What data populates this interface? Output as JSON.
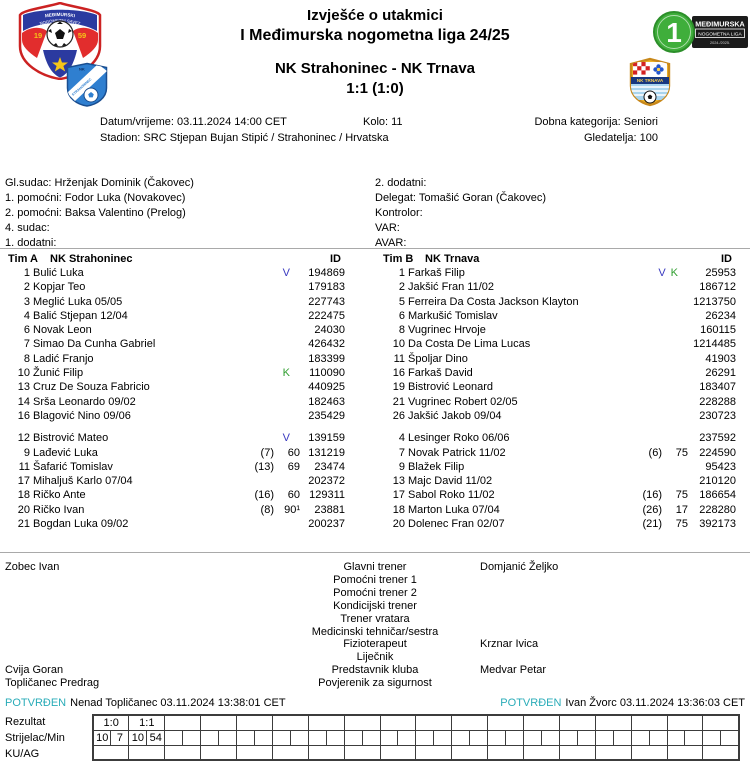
{
  "header": {
    "report_title": "Izvješće o utakmici",
    "league_title": "I Međimurska nogometna liga 24/25",
    "match_title": "NK Strahoninec - NK Trnava",
    "score": "1:1 (1:0)",
    "savez_logo": {
      "arc_line1": "MEĐIMURSKI",
      "arc_line2": "NOGOMETNI SAVEZ",
      "year_left": "19",
      "year_right": "59"
    },
    "mnl_badge": {
      "number": "1",
      "line1": "MEĐIMURSKA",
      "line2": "NOGOMETNA LIGA",
      "line3": "2024./2025."
    },
    "home_logo": {
      "top_text": "NK",
      "stripe_text": "STRAHONINEC"
    },
    "away_logo": {
      "banner_text": "NK TRNAVA"
    }
  },
  "match_info": {
    "datetime": "Datum/vrijeme: 03.11.2024 14:00 CET",
    "round": "Kolo: 11",
    "category": "Dobna kategorija: Seniori",
    "stadium": "Stadion: SRC Stjepan Bujan Stipić / Strahoninec / Hrvatska",
    "attendance": "Gledatelja: 100"
  },
  "officials": {
    "left": [
      "Gl.sudac: Hrženjak Dominik (Čakovec)",
      "1. pomoćni: Fodor Luka (Novakovec)",
      "2. pomoćni: Baksa Valentino (Prelog)",
      "4. sudac:",
      "1. dodatni:"
    ],
    "right": [
      "2. dodatni:",
      "Delegat: Tomašić Goran (Čakovec)",
      "Kontrolor:",
      "VAR:",
      "AVAR:"
    ]
  },
  "team_a": {
    "label": "Tim A",
    "name": "NK Strahoninec",
    "id_header": "ID",
    "starters": [
      {
        "num": "1",
        "name": "Bulić Luka",
        "badges": [
          "V"
        ],
        "id": "194869"
      },
      {
        "num": "2",
        "name": "Kopjar Teo",
        "id": "179183"
      },
      {
        "num": "3",
        "name": "Meglić Luka 05/05",
        "id": "227743"
      },
      {
        "num": "4",
        "name": "Balić Stjepan 12/04",
        "id": "222475"
      },
      {
        "num": "6",
        "name": "Novak Leon",
        "id": "24030"
      },
      {
        "num": "7",
        "name": "Simao Da Cunha Gabriel",
        "id": "426432"
      },
      {
        "num": "8",
        "name": "Ladić Franjo",
        "id": "183399"
      },
      {
        "num": "10",
        "name": "Žunić Filip",
        "badges": [
          "K"
        ],
        "id": "110090"
      },
      {
        "num": "13",
        "name": "Cruz De Souza Fabricio",
        "id": "440925"
      },
      {
        "num": "14",
        "name": "Srša Leonardo 09/02",
        "id": "182463"
      },
      {
        "num": "16",
        "name": "Blagović Nino 09/06",
        "id": "235429"
      }
    ],
    "subs": [
      {
        "num": "12",
        "name": "Bistrović Mateo",
        "badges": [
          "V"
        ],
        "id": "139159"
      },
      {
        "num": "9",
        "name": "Lađević Luka",
        "sub_for": "(7)",
        "minute": "60",
        "id": "131219"
      },
      {
        "num": "11",
        "name": "Šafarić Tomislav",
        "sub_for": "(13)",
        "minute": "69",
        "id": "23474"
      },
      {
        "num": "17",
        "name": "Mihaljuš Karlo 07/04",
        "id": "202372"
      },
      {
        "num": "18",
        "name": "Ričko Ante",
        "sub_for": "(16)",
        "minute": "60",
        "id": "129311"
      },
      {
        "num": "20",
        "name": "Ričko Ivan",
        "sub_for": "(8)",
        "minute": "90¹",
        "id": "23881"
      },
      {
        "num": "21",
        "name": "Bogdan Luka 09/02",
        "id": "200237"
      }
    ]
  },
  "team_b": {
    "label": "Tim B",
    "name": "NK Trnava",
    "id_header": "ID",
    "starters": [
      {
        "num": "1",
        "name": "Farkaš Filip",
        "badges": [
          "V",
          "K"
        ],
        "id": "25953"
      },
      {
        "num": "2",
        "name": "Jakšić Fran 11/02",
        "id": "186712"
      },
      {
        "num": "5",
        "name": "Ferreira Da Costa Jackson Klayton",
        "id": "1213750"
      },
      {
        "num": "6",
        "name": "Markušić Tomislav",
        "id": "26234"
      },
      {
        "num": "8",
        "name": "Vugrinec Hrvoje",
        "id": "160115"
      },
      {
        "num": "10",
        "name": "Da Costa De Lima Lucas",
        "id": "1214485"
      },
      {
        "num": "11",
        "name": "Špoljar Dino",
        "id": "41903"
      },
      {
        "num": "16",
        "name": "Farkaš David",
        "id": "26291"
      },
      {
        "num": "19",
        "name": "Bistrović Leonard",
        "id": "183407"
      },
      {
        "num": "21",
        "name": "Vugrinec Robert 02/05",
        "id": "228288"
      },
      {
        "num": "26",
        "name": "Jakšić Jakob 09/04",
        "id": "230723"
      }
    ],
    "subs": [
      {
        "num": "4",
        "name": "Lesinger Roko 06/06",
        "id": "237592"
      },
      {
        "num": "7",
        "name": "Novak Patrick 11/02",
        "sub_for": "(6)",
        "minute": "75",
        "id": "224590"
      },
      {
        "num": "9",
        "name": "Blažek Filip",
        "id": "95423"
      },
      {
        "num": "13",
        "name": "Majc David 11/02",
        "id": "210120"
      },
      {
        "num": "17",
        "name": "Sabol Roko 11/02",
        "sub_for": "(16)",
        "minute": "75",
        "id": "186654"
      },
      {
        "num": "18",
        "name": "Marton Luka 07/04",
        "sub_for": "(26)",
        "minute": "17",
        "id": "228280"
      },
      {
        "num": "20",
        "name": "Dolenec Fran 02/07",
        "sub_for": "(21)",
        "minute": "75",
        "id": "392173"
      }
    ]
  },
  "staff": {
    "rows": [
      {
        "left": "Zobec Ivan",
        "role": "Glavni trener",
        "right": "Domjanić Željko"
      },
      {
        "left": "",
        "role": "Pomoćni trener 1",
        "right": ""
      },
      {
        "left": "",
        "role": "Pomoćni trener 2",
        "right": ""
      },
      {
        "left": "",
        "role": "Kondicijski trener",
        "right": ""
      },
      {
        "left": "",
        "role": "Trener vratara",
        "right": ""
      },
      {
        "left": "",
        "role": "Medicinski tehničar/sestra",
        "right": ""
      },
      {
        "left": "",
        "role": "Fizioterapeut",
        "right": "Krznar Ivica"
      },
      {
        "left": "",
        "role": "Liječnik",
        "right": ""
      },
      {
        "left": "Cvija Goran",
        "role": "Predstavnik kluba",
        "right": "Medvar Petar"
      },
      {
        "left": "Topličanec Predrag",
        "role": "Povjerenik za sigurnost",
        "right": ""
      }
    ]
  },
  "confirmation": {
    "left_status": "POTVRĐEN",
    "left_text": "Nenad Topličanec 03.11.2024 13:38:01 CET",
    "right_status": "POTVRĐEN",
    "right_text": "Ivan Žvorc 03.11.2024 13:36:03 CET"
  },
  "results": {
    "labels": [
      "Rezultat",
      "Strijelac/Min",
      "KU/AG"
    ],
    "columns": 18,
    "rezultat": [
      "1:0",
      "1:1"
    ],
    "strijelac_min": [
      "10",
      "7",
      "10",
      "54"
    ],
    "ku_ag": []
  },
  "colors": {
    "confirmed_teal": "#2aacb8",
    "goalkeeper_badge": "#3a3ac0",
    "captain_badge": "#2f9e2f",
    "grid_border": "#3c3c3c",
    "separator": "#a9a9a9"
  }
}
